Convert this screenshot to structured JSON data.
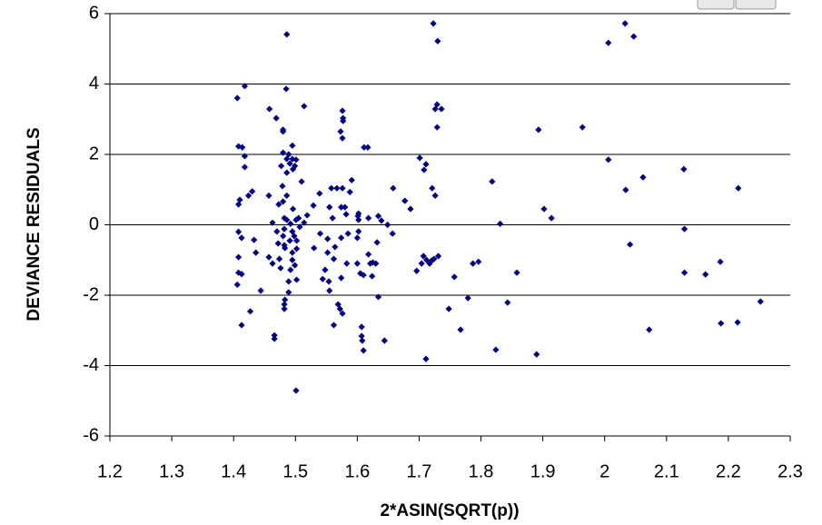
{
  "chart_data": {
    "type": "scatter",
    "x_label": "2*ASIN(SQRT(p))",
    "y_label": "DEVIANCE RESIDUALS",
    "color": "#000080",
    "grid": true,
    "xlim": [
      1.2,
      2.3
    ],
    "xticks": [
      1.2,
      1.3,
      1.4,
      1.5,
      1.6,
      1.7,
      1.8,
      1.9,
      2,
      2.1,
      2.2,
      2.3
    ],
    "ylim": [
      -6,
      6
    ],
    "yticks": [
      -6,
      -4,
      -2,
      0,
      2,
      4,
      6
    ],
    "x": [
      1.406,
      1.418,
      1.408,
      1.414,
      1.418,
      1.418,
      1.41,
      1.408,
      1.408,
      1.413,
      1.408,
      1.408,
      1.406,
      1.413,
      1.413,
      1.43,
      1.424,
      1.433,
      1.436,
      1.427,
      1.444,
      1.458,
      1.457,
      1.463,
      1.457,
      1.463,
      1.466,
      1.466,
      1.469,
      1.47,
      1.472,
      1.473,
      1.474,
      1.476,
      1.477,
      1.479,
      1.48,
      1.48,
      1.48,
      1.482,
      1.482,
      1.482,
      1.483,
      1.48,
      1.48,
      1.482,
      1.483,
      1.482,
      1.486,
      1.485,
      1.486,
      1.486,
      1.486,
      1.486,
      1.489,
      1.489,
      1.489,
      1.491,
      1.491,
      1.492,
      1.492,
      1.495,
      1.495,
      1.495,
      1.495,
      1.495,
      1.496,
      1.496,
      1.498,
      1.499,
      1.499,
      1.501,
      1.502,
      1.501,
      1.502,
      1.502,
      1.505,
      1.507,
      1.501,
      1.51,
      1.514,
      1.514,
      1.519,
      1.529,
      1.53,
      1.539,
      1.54,
      1.544,
      1.548,
      1.552,
      1.552,
      1.554,
      1.555,
      1.555,
      1.558,
      1.56,
      1.564,
      1.562,
      1.562,
      1.567,
      1.569,
      1.573,
      1.576,
      1.574,
      1.572,
      1.574,
      1.574,
      1.576,
      1.577,
      1.576,
      1.577,
      1.576,
      1.58,
      1.582,
      1.583,
      1.585,
      1.588,
      1.591,
      1.6,
      1.6,
      1.601,
      1.602,
      1.602,
      1.602,
      1.605,
      1.607,
      1.607,
      1.608,
      1.61,
      1.61,
      1.611,
      1.617,
      1.618,
      1.618,
      1.621,
      1.624,
      1.625,
      1.63,
      1.632,
      1.634,
      1.634,
      1.639,
      1.644,
      1.649,
      1.657,
      1.658,
      1.677,
      1.686,
      1.696,
      1.701,
      1.704,
      1.707,
      1.708,
      1.711,
      1.711,
      1.712,
      1.717,
      1.72,
      1.721,
      1.723,
      1.724,
      1.726,
      1.726,
      1.729,
      1.729,
      1.73,
      1.731,
      1.736,
      1.748,
      1.757,
      1.767,
      1.779,
      1.787,
      1.796,
      1.818,
      1.824,
      1.831,
      1.843,
      1.858,
      1.89,
      1.893,
      1.902,
      1.914,
      1.964,
      2.006,
      2.006,
      2.033,
      2.034,
      2.041,
      2.047,
      2.062,
      2.072,
      2.128,
      2.129,
      2.129,
      2.163,
      2.187,
      2.188,
      2.216,
      2.215,
      2.252
    ],
    "values": [
      3.6,
      3.94,
      2.23,
      2.2,
      1.95,
      1.64,
      0.71,
      0.58,
      -0.2,
      -0.37,
      -0.92,
      -1.36,
      -1.7,
      -1.4,
      -2.85,
      0.95,
      0.83,
      -0.43,
      -0.79,
      -2.46,
      -1.87,
      3.29,
      0.83,
      0.06,
      -0.92,
      -1.1,
      -3.24,
      -3.14,
      3.03,
      -0.19,
      -0.53,
      0.58,
      -0.97,
      -1.23,
      1.67,
      1.1,
      2.05,
      0.66,
      -0.32,
      0.19,
      -0.12,
      -0.58,
      -0.66,
      2.7,
      2.65,
      -2.26,
      -2.13,
      -2.39,
      5.41,
      3.86,
      1.87,
      1.48,
      0.83,
      0.14,
      2.0,
      -1.61,
      -1.92,
      1.74,
      -0.45,
      -1.28,
      0.03,
      1.87,
      -0.19,
      -0.79,
      -1.0,
      2.25,
      1.58,
      0.45,
      -0.32,
      1.67,
      -1.15,
      1.85,
      -0.45,
      0.14,
      -0.68,
      -1.56,
      0.19,
      -0.06,
      -4.71,
      1.23,
      3.37,
      0.06,
      0.27,
      0.55,
      -0.66,
      0.89,
      -0.25,
      -1.54,
      -1.28,
      -0.4,
      -0.79,
      -1.61,
      -1.87,
      0.5,
      1.04,
      0.19,
      -0.63,
      -0.97,
      -2.85,
      1.04,
      -2.26,
      2.65,
      1.04,
      0.5,
      -2.39,
      -0.37,
      -1.51,
      3.24,
      3.03,
      2.46,
      2.95,
      -2.52,
      0.5,
      0.3,
      -1.1,
      -0.25,
      0.93,
      1.27,
      -1.1,
      -0.37,
      0.25,
      0.32,
      -0.19,
      0.14,
      -1.38,
      -2.9,
      -3.16,
      -3.29,
      -3.57,
      -1.43,
      2.2,
      2.2,
      0.19,
      -0.84,
      -1.1,
      -1.46,
      -1.07,
      -1.1,
      -0.5,
      -2.05,
      0.25,
      0.12,
      -3.29,
      0.0,
      -0.25,
      1.04,
      0.68,
      0.45,
      -1.31,
      1.9,
      -1.1,
      -0.89,
      1.56,
      1.72,
      -3.81,
      -1.0,
      -1.1,
      -1.02,
      1.04,
      5.72,
      -0.97,
      3.29,
      0.83,
      3.42,
      2.77,
      5.22,
      -0.89,
      3.29,
      -2.39,
      -1.48,
      -2.98,
      -2.08,
      -1.1,
      -1.05,
      1.23,
      -3.55,
      0.03,
      -2.21,
      -1.36,
      -3.68,
      2.7,
      0.45,
      0.19,
      2.77,
      5.17,
      1.85,
      5.72,
      0.99,
      -0.56,
      5.35,
      1.35,
      -2.98,
      1.58,
      -0.12,
      -1.36,
      -1.41,
      -1.05,
      -2.8,
      1.04,
      -2.77,
      -2.18
    ]
  }
}
